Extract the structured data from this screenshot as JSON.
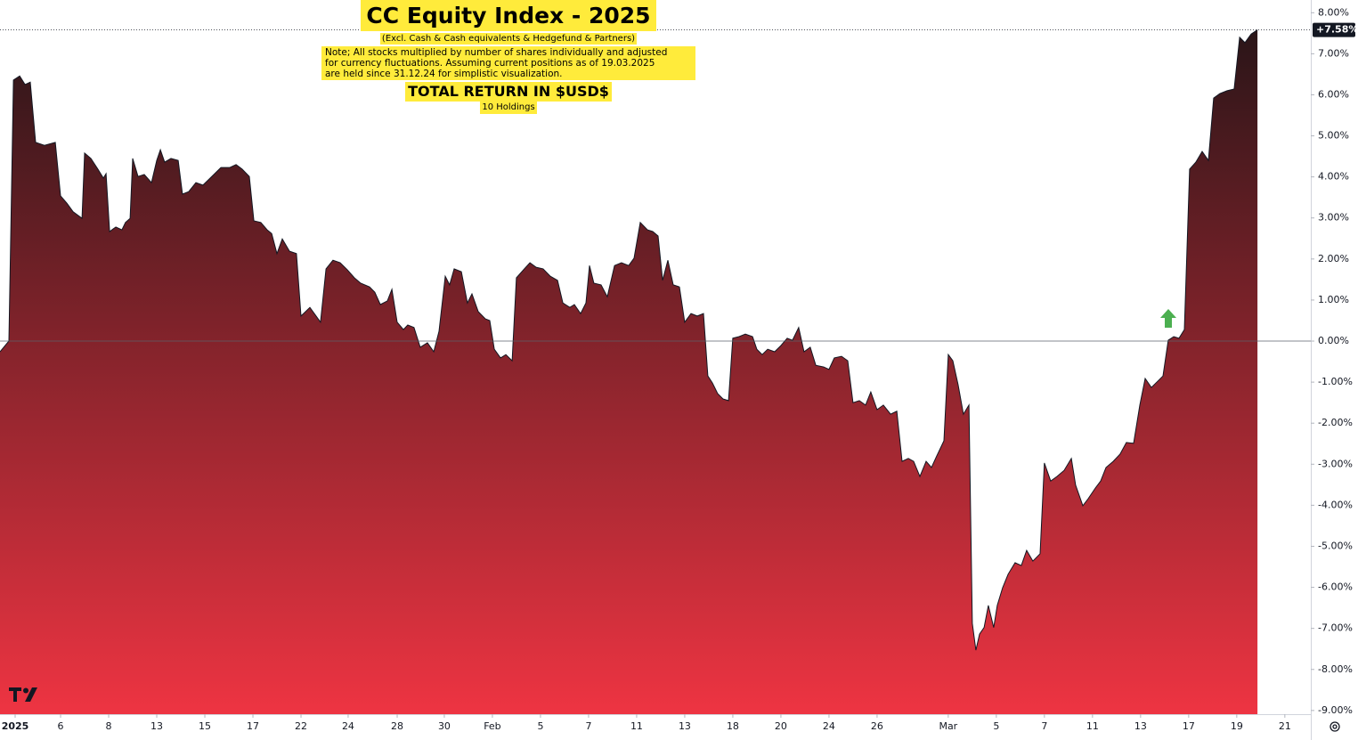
{
  "chart_data": {
    "type": "area",
    "title": "CC Equity Index - 2025",
    "subtitle": "(Excl. Cash & Cash equivalents & Hedgefund & Partners)",
    "note": [
      "Note; All stocks multiplied by number of shares individually and adjusted",
      "for currency fluctuations. Assuming current positions as of 19.03.2025",
      "are held since 31.12.24 for simplistic visualization."
    ],
    "heading": "TOTAL RETURN IN $USD$",
    "caption": "10 Holdings",
    "xlim": [
      -0.63,
      53.89
    ],
    "ylim": [
      -9.09,
      8.31
    ],
    "xticks": [
      {
        "value": 0,
        "label": "2025"
      },
      {
        "value": 1.89,
        "label": "6"
      },
      {
        "value": 3.89,
        "label": "8"
      },
      {
        "value": 5.89,
        "label": "13"
      },
      {
        "value": 7.89,
        "label": "15"
      },
      {
        "value": 9.89,
        "label": "17"
      },
      {
        "value": 11.89,
        "label": "22"
      },
      {
        "value": 13.85,
        "label": "24"
      },
      {
        "value": 15.89,
        "label": "28"
      },
      {
        "value": 17.85,
        "label": "30"
      },
      {
        "value": 19.85,
        "label": "Feb"
      },
      {
        "value": 21.85,
        "label": "5"
      },
      {
        "value": 23.85,
        "label": "7"
      },
      {
        "value": 25.85,
        "label": "11"
      },
      {
        "value": 27.85,
        "label": "13"
      },
      {
        "value": 29.85,
        "label": "18"
      },
      {
        "value": 31.85,
        "label": "20"
      },
      {
        "value": 33.85,
        "label": "24"
      },
      {
        "value": 35.85,
        "label": "26"
      },
      {
        "value": 38.81,
        "label": "Mar"
      },
      {
        "value": 40.81,
        "label": "5"
      },
      {
        "value": 42.81,
        "label": "7"
      },
      {
        "value": 44.81,
        "label": "11"
      },
      {
        "value": 46.81,
        "label": "13"
      },
      {
        "value": 48.81,
        "label": "17"
      },
      {
        "value": 50.81,
        "label": "19"
      },
      {
        "value": 52.81,
        "label": "21"
      }
    ],
    "yticks": [
      {
        "value": 8,
        "label": "8.00%"
      },
      {
        "value": 7,
        "label": "7.00%"
      },
      {
        "value": 6,
        "label": "6.00%"
      },
      {
        "value": 5,
        "label": "5.00%"
      },
      {
        "value": 4,
        "label": "4.00%"
      },
      {
        "value": 3,
        "label": "3.00%"
      },
      {
        "value": 2,
        "label": "2.00%"
      },
      {
        "value": 1,
        "label": "1.00%"
      },
      {
        "value": 0,
        "label": "0.00%"
      },
      {
        "value": -1,
        "label": "-1.00%"
      },
      {
        "value": -2,
        "label": "-2.00%"
      },
      {
        "value": -3,
        "label": "-3.00%"
      },
      {
        "value": -4,
        "label": "-4.00%"
      },
      {
        "value": -5,
        "label": "-5.00%"
      },
      {
        "value": -6,
        "label": "-6.00%"
      },
      {
        "value": -7,
        "label": "-7.00%"
      },
      {
        "value": -8,
        "label": "-8.00%"
      },
      {
        "value": -9,
        "label": "-9.00%"
      }
    ],
    "baseline": 0,
    "series": [
      {
        "name": "CC Equity Index",
        "color": "#131722",
        "fill_top": "#2a1518",
        "fill_bottom": "#ee3442",
        "last_label": "+7.58%",
        "x": [
          -0.63,
          -0.26,
          -0.07,
          0.19,
          0.41,
          0.63,
          0.85,
          1.22,
          1.67,
          1.89,
          2.15,
          2.41,
          2.78,
          2.89,
          3.15,
          3.44,
          3.67,
          3.78,
          3.93,
          4.19,
          4.44,
          4.59,
          4.78,
          4.89,
          5.11,
          5.37,
          5.67,
          5.89,
          6.04,
          6.22,
          6.48,
          6.78,
          6.96,
          7.22,
          7.52,
          7.81,
          8.11,
          8.56,
          8.93,
          9.19,
          9.44,
          9.74,
          9.93,
          10.22,
          10.48,
          10.67,
          10.89,
          11.11,
          11.41,
          11.7,
          11.89,
          12.26,
          12.52,
          12.7,
          12.93,
          13.22,
          13.52,
          13.81,
          14.11,
          14.37,
          14.74,
          14.96,
          15.19,
          15.48,
          15.67,
          15.89,
          16.15,
          16.33,
          16.59,
          16.85,
          17.15,
          17.41,
          17.63,
          17.89,
          18.07,
          18.26,
          18.56,
          18.81,
          19.0,
          19.26,
          19.56,
          19.74,
          19.93,
          20.19,
          20.41,
          20.67,
          20.85,
          21.15,
          21.41,
          21.67,
          21.96,
          22.26,
          22.56,
          22.78,
          23.07,
          23.26,
          23.52,
          23.74,
          23.89,
          24.07,
          24.37,
          24.63,
          24.93,
          25.22,
          25.52,
          25.74,
          26.0,
          26.3,
          26.52,
          26.74,
          26.93,
          27.15,
          27.37,
          27.63,
          27.85,
          28.11,
          28.37,
          28.63,
          28.81,
          29.0,
          29.22,
          29.44,
          29.67,
          29.85,
          30.11,
          30.37,
          30.67,
          30.85,
          31.07,
          31.3,
          31.59,
          31.85,
          32.11,
          32.33,
          32.59,
          32.81,
          33.07,
          33.3,
          33.63,
          33.85,
          34.07,
          34.37,
          34.63,
          34.85,
          35.11,
          35.37,
          35.59,
          35.85,
          36.11,
          36.41,
          36.67,
          36.89,
          37.15,
          37.37,
          37.63,
          37.89,
          38.11,
          38.33,
          38.63,
          38.81,
          39.0,
          39.22,
          39.44,
          39.67,
          39.81,
          39.96,
          40.11,
          40.3,
          40.48,
          40.7,
          40.85,
          41.07,
          41.3,
          41.59,
          41.85,
          42.07,
          42.33,
          42.63,
          42.81,
          43.07,
          43.33,
          43.63,
          43.93,
          44.11,
          44.41,
          44.63,
          44.93,
          45.15,
          45.37,
          45.67,
          45.96,
          46.22,
          46.52,
          46.78,
          47.0,
          47.26,
          47.52,
          47.74,
          47.96,
          48.19,
          48.41,
          48.63,
          48.85,
          49.11,
          49.37,
          49.63,
          49.85,
          50.11,
          50.41,
          50.7,
          50.93,
          51.15,
          51.41,
          51.67
        ],
        "values": [
          -0.26,
          0,
          6.36,
          6.46,
          6.25,
          6.31,
          4.84,
          4.77,
          4.84,
          3.54,
          3.36,
          3.15,
          2.99,
          4.58,
          4.45,
          4.19,
          3.97,
          4.08,
          2.67,
          2.78,
          2.71,
          2.89,
          2.99,
          4.45,
          4.01,
          4.06,
          3.86,
          4.4,
          4.66,
          4.36,
          4.45,
          4.4,
          3.58,
          3.64,
          3.86,
          3.8,
          3.97,
          4.23,
          4.23,
          4.3,
          4.19,
          4.01,
          2.93,
          2.89,
          2.71,
          2.62,
          2.13,
          2.49,
          2.19,
          2.13,
          0.61,
          0.82,
          0.61,
          0.46,
          1.76,
          1.97,
          1.91,
          1.74,
          1.54,
          1.41,
          1.32,
          1.19,
          0.89,
          0.98,
          1.26,
          0.46,
          0.28,
          0.39,
          0.33,
          -0.15,
          -0.04,
          -0.26,
          0.24,
          1.58,
          1.37,
          1.76,
          1.69,
          0.93,
          1.15,
          0.72,
          0.54,
          0.5,
          -0.2,
          -0.41,
          -0.33,
          -0.48,
          1.54,
          1.74,
          1.91,
          1.8,
          1.76,
          1.58,
          1.48,
          0.93,
          0.82,
          0.89,
          0.67,
          0.93,
          1.84,
          1.41,
          1.37,
          1.08,
          1.84,
          1.91,
          1.84,
          2.02,
          2.89,
          2.71,
          2.67,
          2.56,
          1.48,
          1.97,
          1.37,
          1.32,
          0.46,
          0.67,
          0.61,
          0.67,
          -0.85,
          -1.02,
          -1.28,
          -1.41,
          -1.45,
          0.07,
          0.11,
          0.17,
          0.11,
          -0.2,
          -0.33,
          -0.2,
          -0.26,
          -0.11,
          0.07,
          0.02,
          0.33,
          -0.26,
          -0.15,
          -0.59,
          -0.63,
          -0.69,
          -0.41,
          -0.37,
          -0.48,
          -1.5,
          -1.45,
          -1.56,
          -1.24,
          -1.67,
          -1.56,
          -1.78,
          -1.71,
          -2.93,
          -2.86,
          -2.93,
          -3.3,
          -2.93,
          -3.08,
          -2.8,
          -2.43,
          -0.33,
          -0.48,
          -1.06,
          -1.78,
          -1.56,
          -6.88,
          -7.53,
          -7.14,
          -6.98,
          -6.44,
          -6.98,
          -6.44,
          -6.01,
          -5.68,
          -5.4,
          -5.47,
          -5.1,
          -5.36,
          -5.18,
          -2.97,
          -3.41,
          -3.3,
          -3.15,
          -2.86,
          -3.51,
          -4.01,
          -3.84,
          -3.58,
          -3.41,
          -3.08,
          -2.93,
          -2.75,
          -2.47,
          -2.49,
          -1.56,
          -0.91,
          -1.13,
          -0.98,
          -0.85,
          0.02,
          0.11,
          0.07,
          0.28,
          4.19,
          4.36,
          4.62,
          4.4,
          5.92,
          6.03,
          6.1,
          6.14,
          7.4,
          7.27,
          7.48,
          7.58
        ]
      }
    ]
  }
}
